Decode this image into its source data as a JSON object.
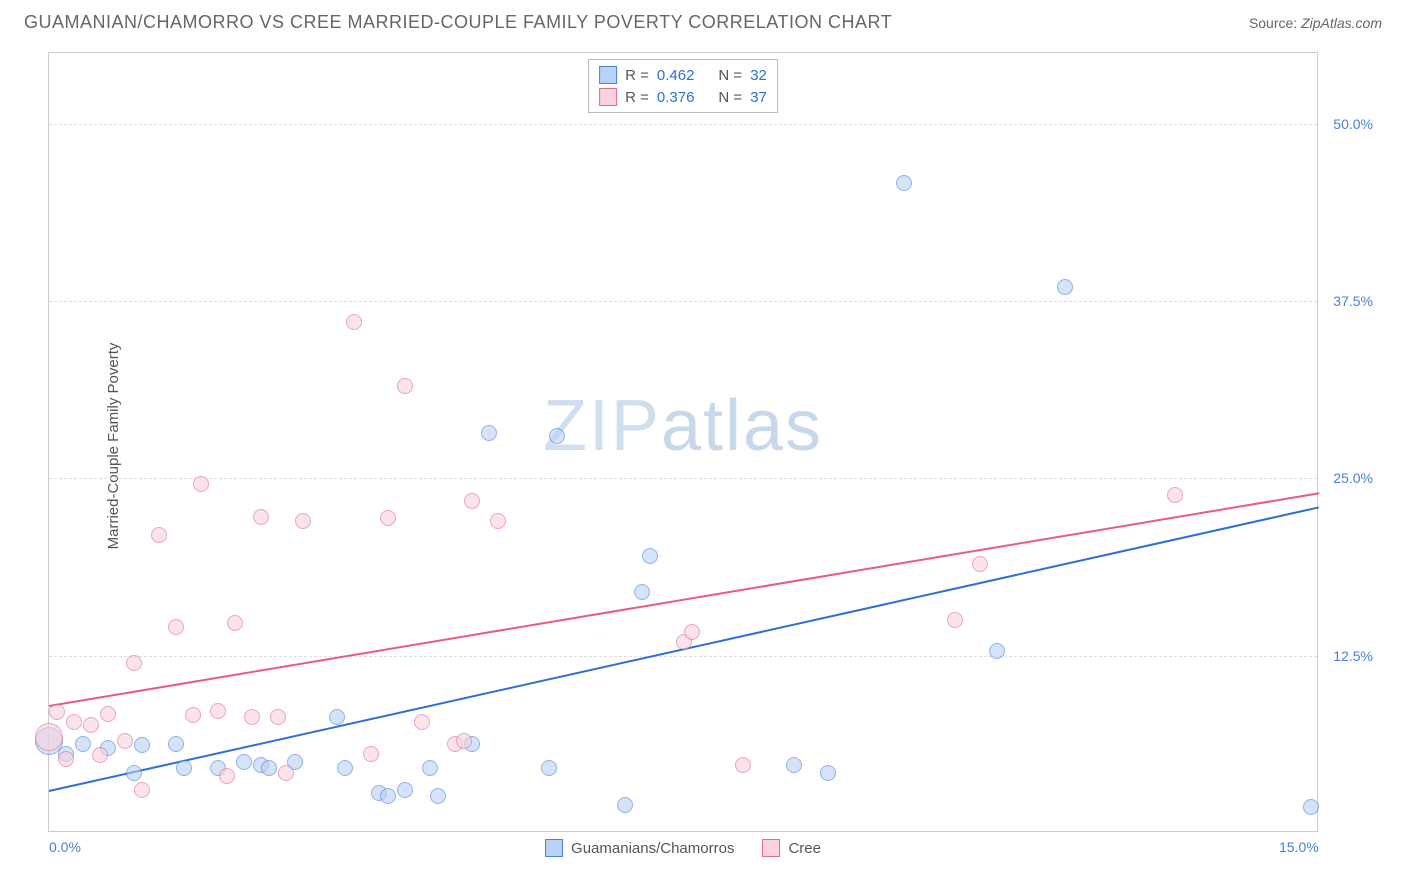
{
  "title": "GUAMANIAN/CHAMORRO VS CREE MARRIED-COUPLE FAMILY POVERTY CORRELATION CHART",
  "source_prefix": "Source: ",
  "source_name": "ZipAtlas.com",
  "y_axis_label": "Married-Couple Family Poverty",
  "watermark": {
    "part1": "ZIP",
    "part2": "atlas"
  },
  "chart": {
    "type": "scatter",
    "xlim": [
      0,
      15
    ],
    "ylim": [
      0,
      55
    ],
    "x_ticks": [
      {
        "value": 0,
        "label": "0.0%"
      },
      {
        "value": 15,
        "label": "15.0%"
      }
    ],
    "y_ticks": [
      {
        "value": 12.5,
        "label": "12.5%"
      },
      {
        "value": 25.0,
        "label": "25.0%"
      },
      {
        "value": 37.5,
        "label": "37.5%"
      },
      {
        "value": 50.0,
        "label": "50.0%"
      }
    ],
    "grid_color": "#dddddd",
    "border_color": "#cccccc",
    "background_color": "#ffffff",
    "title_fontsize": 18,
    "label_fontsize": 15,
    "tick_fontsize": 14,
    "tick_color": "#4a7fd6",
    "point_radius": 8,
    "point_opacity": 0.6,
    "series": [
      {
        "name": "Guamanians/Chamorros",
        "color": "#7daaf0",
        "fill": "#b9d2f5",
        "stroke": "#4a7fd6",
        "stats": {
          "R": "0.462",
          "N": "32"
        },
        "trendline": {
          "x1": 0,
          "y1": 3.0,
          "x2": 15,
          "y2": 23.0,
          "color": "#2c6fd6",
          "width": 2
        },
        "points": [
          {
            "x": 0.0,
            "y": 6.5,
            "r": 14
          },
          {
            "x": 0.2,
            "y": 5.6
          },
          {
            "x": 0.4,
            "y": 6.3
          },
          {
            "x": 0.7,
            "y": 6.0
          },
          {
            "x": 1.0,
            "y": 4.2
          },
          {
            "x": 1.1,
            "y": 6.2
          },
          {
            "x": 1.5,
            "y": 6.3
          },
          {
            "x": 1.6,
            "y": 4.6
          },
          {
            "x": 2.0,
            "y": 4.6
          },
          {
            "x": 2.3,
            "y": 5.0
          },
          {
            "x": 2.5,
            "y": 4.8
          },
          {
            "x": 2.6,
            "y": 4.6
          },
          {
            "x": 2.9,
            "y": 5.0
          },
          {
            "x": 3.4,
            "y": 8.2
          },
          {
            "x": 3.5,
            "y": 4.6
          },
          {
            "x": 3.9,
            "y": 2.8
          },
          {
            "x": 4.0,
            "y": 2.6
          },
          {
            "x": 4.2,
            "y": 3.0
          },
          {
            "x": 4.5,
            "y": 4.6
          },
          {
            "x": 4.6,
            "y": 2.6
          },
          {
            "x": 5.0,
            "y": 6.3
          },
          {
            "x": 5.2,
            "y": 28.2
          },
          {
            "x": 5.9,
            "y": 4.6
          },
          {
            "x": 6.0,
            "y": 28.0
          },
          {
            "x": 6.8,
            "y": 2.0
          },
          {
            "x": 7.0,
            "y": 17.0
          },
          {
            "x": 7.1,
            "y": 19.5
          },
          {
            "x": 8.8,
            "y": 4.8
          },
          {
            "x": 9.2,
            "y": 4.2
          },
          {
            "x": 10.1,
            "y": 45.8
          },
          {
            "x": 11.2,
            "y": 12.8
          },
          {
            "x": 12.0,
            "y": 38.5
          },
          {
            "x": 14.9,
            "y": 1.8
          }
        ]
      },
      {
        "name": "Cree",
        "color": "#f4a7bf",
        "fill": "#f9d2de",
        "stroke": "#e06b91",
        "stats": {
          "R": "0.376",
          "N": "37"
        },
        "trendline": {
          "x1": 0,
          "y1": 9.0,
          "x2": 15,
          "y2": 24.0,
          "color": "#e85a8a",
          "width": 2
        },
        "points": [
          {
            "x": 0.0,
            "y": 6.8,
            "r": 14
          },
          {
            "x": 0.1,
            "y": 8.5
          },
          {
            "x": 0.2,
            "y": 5.2
          },
          {
            "x": 0.3,
            "y": 7.8
          },
          {
            "x": 0.5,
            "y": 7.6
          },
          {
            "x": 0.6,
            "y": 5.5
          },
          {
            "x": 0.7,
            "y": 8.4
          },
          {
            "x": 0.9,
            "y": 6.5
          },
          {
            "x": 1.0,
            "y": 12.0
          },
          {
            "x": 1.1,
            "y": 3.0
          },
          {
            "x": 1.3,
            "y": 21.0
          },
          {
            "x": 1.5,
            "y": 14.5
          },
          {
            "x": 1.7,
            "y": 8.3
          },
          {
            "x": 1.8,
            "y": 24.6
          },
          {
            "x": 2.0,
            "y": 8.6
          },
          {
            "x": 2.1,
            "y": 4.0
          },
          {
            "x": 2.2,
            "y": 14.8
          },
          {
            "x": 2.4,
            "y": 8.2
          },
          {
            "x": 2.5,
            "y": 22.3
          },
          {
            "x": 2.7,
            "y": 8.2
          },
          {
            "x": 2.8,
            "y": 4.2
          },
          {
            "x": 3.0,
            "y": 22.0
          },
          {
            "x": 3.6,
            "y": 36.0
          },
          {
            "x": 3.8,
            "y": 5.6
          },
          {
            "x": 4.0,
            "y": 22.2
          },
          {
            "x": 4.2,
            "y": 31.5
          },
          {
            "x": 4.4,
            "y": 7.8
          },
          {
            "x": 4.8,
            "y": 6.3
          },
          {
            "x": 4.9,
            "y": 6.5
          },
          {
            "x": 5.0,
            "y": 23.4
          },
          {
            "x": 5.3,
            "y": 22.0
          },
          {
            "x": 7.5,
            "y": 13.5
          },
          {
            "x": 7.6,
            "y": 14.2
          },
          {
            "x": 8.2,
            "y": 4.8
          },
          {
            "x": 10.7,
            "y": 15.0
          },
          {
            "x": 11.0,
            "y": 19.0
          },
          {
            "x": 13.3,
            "y": 23.8
          }
        ]
      }
    ],
    "legend": {
      "stats_labels": {
        "R": "R =",
        "N": "N ="
      }
    }
  }
}
